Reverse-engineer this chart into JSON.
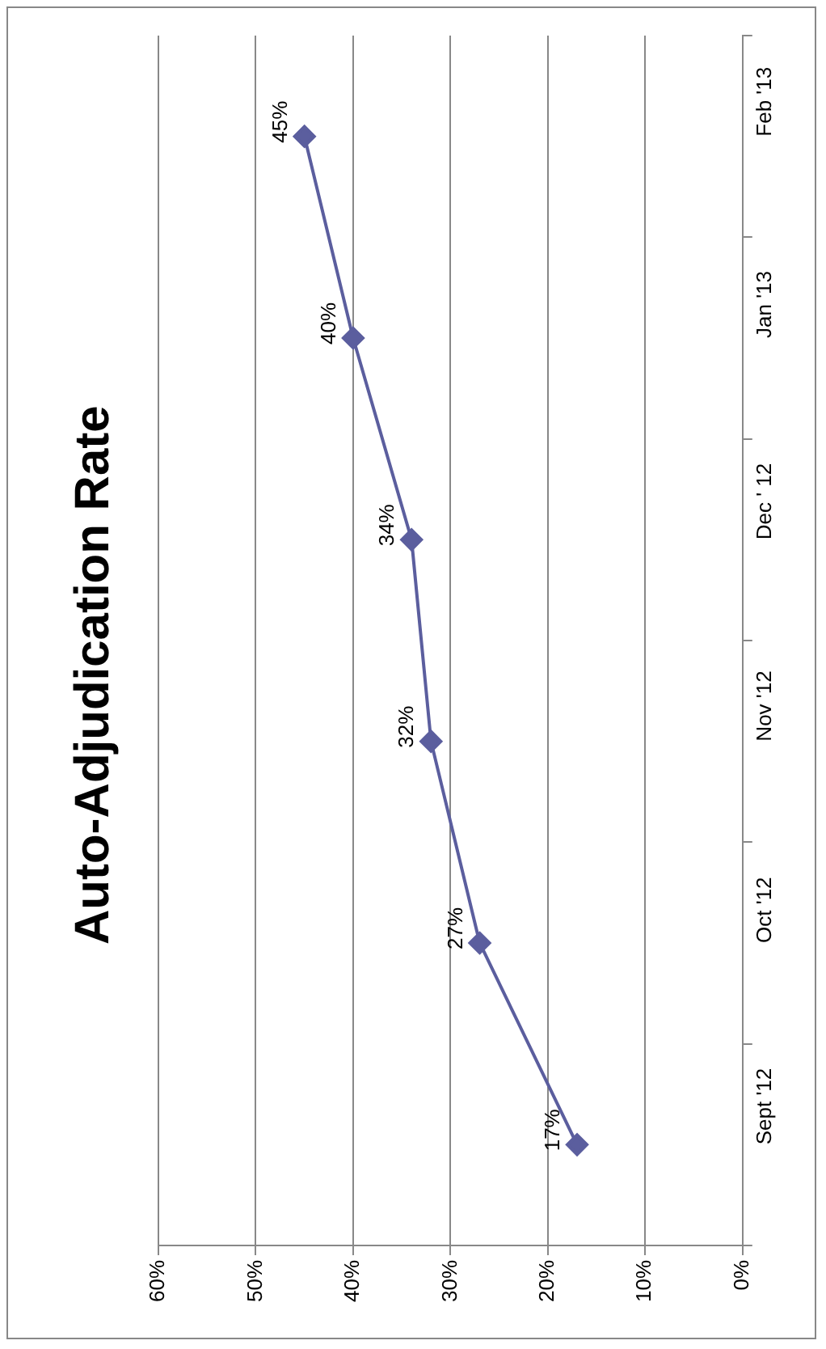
{
  "chart_data": {
    "type": "line",
    "orientation": "horizontal",
    "title": "Auto-Adjudication Rate",
    "categories": [
      "Feb '13",
      "Jan '13",
      "Dec ' 12",
      "Nov '12",
      "Oct '12",
      "Sept '12"
    ],
    "series": [
      {
        "color": "#5b5e9e",
        "values": [
          45,
          40,
          34,
          32,
          27,
          17
        ]
      }
    ],
    "xlim": [
      60,
      0
    ],
    "xticks": [
      {
        "value": 60,
        "label": "60%"
      },
      {
        "value": 50,
        "label": "50%"
      },
      {
        "value": 40,
        "label": "40%"
      },
      {
        "value": 30,
        "label": "30%"
      },
      {
        "value": 20,
        "label": "20%"
      },
      {
        "value": 10,
        "label": "10%"
      },
      {
        "value": 0,
        "label": "0%"
      }
    ],
    "value_labels": [
      "45%",
      "40%",
      "34%",
      "32%",
      "27%",
      "17%"
    ],
    "grid": "x",
    "legend": false,
    "marker": "diamond",
    "line_style": "solid"
  }
}
